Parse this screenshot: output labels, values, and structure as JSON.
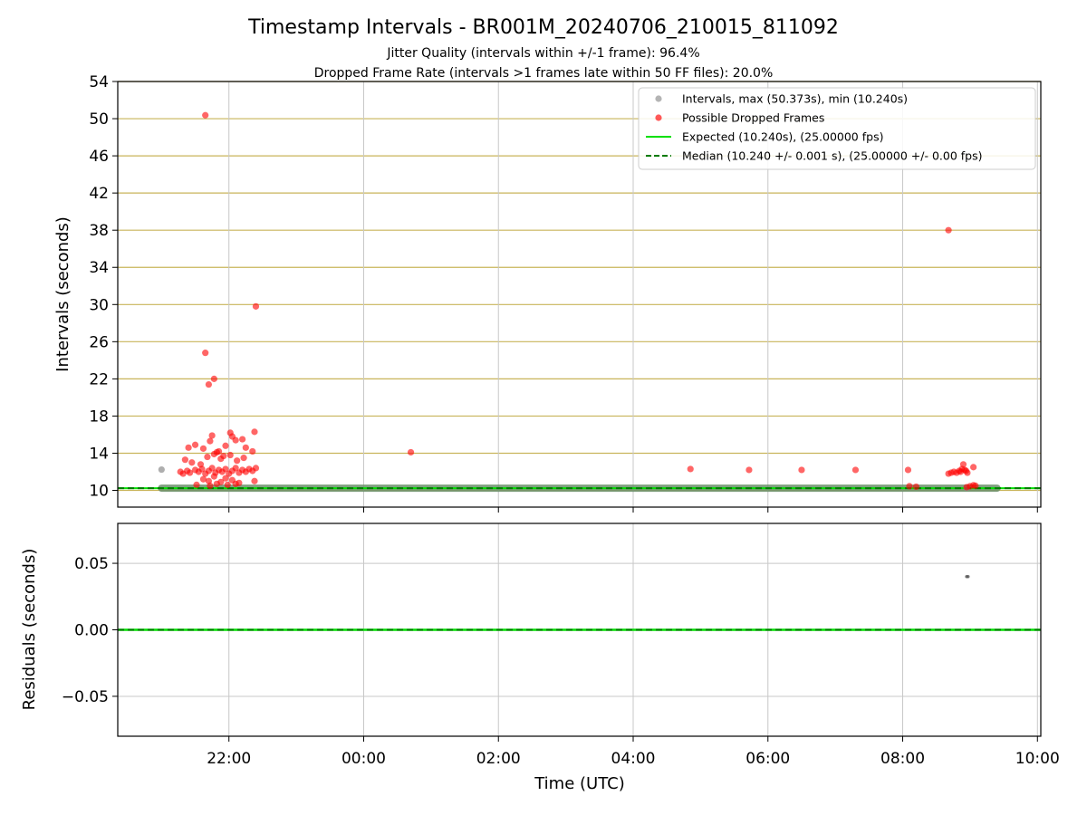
{
  "chart_data": [
    {
      "type": "scatter",
      "title": "Timestamp Intervals - BR001M_20240706_210015_811092",
      "subtitle_lines": [
        "Jitter Quality (intervals within +/-1 frame): 96.4%",
        "Dropped Frame Rate (intervals >1 frames late within 50 FF files): 20.0%"
      ],
      "xlabel": "",
      "ylabel": "Intervals (seconds)",
      "x_unit": "hours since 00:00 UTC (2024-07-06 21:00 = -3.0)",
      "xlim": [
        -3.65,
        10.05
      ],
      "ylim": [
        8.2,
        54
      ],
      "yticks": [
        10,
        14,
        18,
        22,
        26,
        30,
        34,
        38,
        42,
        46,
        50,
        54
      ],
      "xticks": [
        -2,
        0,
        2,
        4,
        6,
        8,
        10
      ],
      "xtick_labels": [
        "22:00",
        "00:00",
        "02:00",
        "04:00",
        "06:00",
        "08:00",
        "10:00"
      ],
      "grid": {
        "y_color": "#c8b45a",
        "x_color": "#c8c8c8"
      },
      "legend_position": "top-right",
      "colors": {
        "intervals": "#8c8c8c",
        "dropped": "#ff0000",
        "expected": "#00e000",
        "median": "#007a00"
      },
      "legend": [
        {
          "label": "Intervals, max (50.373s), min (10.240s)",
          "kind": "dot",
          "color": "#8c8c8c"
        },
        {
          "label": "Possible Dropped Frames",
          "kind": "dot",
          "color": "#ff0000"
        },
        {
          "label": "Expected (10.240s), (25.00000 fps)",
          "kind": "line",
          "color": "#00e000"
        },
        {
          "label": "Median (10.240 +/- 0.001 s), (25.00000 +/- 0.00 fps)",
          "kind": "dash",
          "color": "#007a00"
        }
      ],
      "expected_interval": 10.24,
      "median_interval": 10.24,
      "interval_band": {
        "x_start": -3.0,
        "x_end": 9.4,
        "y": 10.24
      },
      "series": [
        {
          "name": "Intervals",
          "points": [
            [
              -3.0,
              12.24
            ],
            [
              8.95,
              10.28
            ]
          ]
        },
        {
          "name": "Possible Dropped Frames",
          "points": [
            [
              -2.35,
              50.37
            ],
            [
              -2.35,
              24.8
            ],
            [
              -2.3,
              21.4
            ],
            [
              -2.22,
              22.0
            ],
            [
              -1.6,
              29.8
            ],
            [
              -2.6,
              14.6
            ],
            [
              -2.5,
              14.9
            ],
            [
              -2.38,
              14.5
            ],
            [
              -2.28,
              15.3
            ],
            [
              -2.25,
              15.9
            ],
            [
              -2.15,
              14.2
            ],
            [
              -2.05,
              14.8
            ],
            [
              -1.98,
              16.2
            ],
            [
              -1.95,
              15.8
            ],
            [
              -1.9,
              15.4
            ],
            [
              -1.8,
              15.5
            ],
            [
              -1.75,
              14.6
            ],
            [
              -1.65,
              14.2
            ],
            [
              -1.62,
              16.3
            ],
            [
              -2.65,
              13.3
            ],
            [
              -2.55,
              13.0
            ],
            [
              -2.42,
              12.8
            ],
            [
              -2.32,
              13.6
            ],
            [
              -2.22,
              13.9
            ],
            [
              -2.18,
              14.1
            ],
            [
              -2.12,
              13.4
            ],
            [
              -2.08,
              13.7
            ],
            [
              -1.98,
              13.8
            ],
            [
              -1.88,
              13.2
            ],
            [
              -1.78,
              13.5
            ],
            [
              -2.72,
              12.0
            ],
            [
              -2.68,
              11.8
            ],
            [
              -2.62,
              12.1
            ],
            [
              -2.58,
              11.9
            ],
            [
              -2.5,
              12.2
            ],
            [
              -2.45,
              12.0
            ],
            [
              -2.4,
              12.3
            ],
            [
              -2.35,
              11.8
            ],
            [
              -2.3,
              12.1
            ],
            [
              -2.25,
              12.4
            ],
            [
              -2.2,
              11.9
            ],
            [
              -2.15,
              12.2
            ],
            [
              -2.1,
              12.0
            ],
            [
              -2.05,
              12.3
            ],
            [
              -2.0,
              11.8
            ],
            [
              -1.95,
              12.1
            ],
            [
              -1.9,
              12.4
            ],
            [
              -1.85,
              11.9
            ],
            [
              -1.8,
              12.2
            ],
            [
              -1.75,
              12.0
            ],
            [
              -1.7,
              12.3
            ],
            [
              -1.65,
              12.1
            ],
            [
              -1.6,
              12.4
            ],
            [
              -2.38,
              11.2
            ],
            [
              -2.3,
              11.0
            ],
            [
              -2.22,
              11.5
            ],
            [
              -2.12,
              10.9
            ],
            [
              -2.05,
              11.3
            ],
            [
              -1.95,
              11.1
            ],
            [
              -1.85,
              10.8
            ],
            [
              -2.48,
              10.6
            ],
            [
              -2.28,
              10.5
            ],
            [
              -2.18,
              10.7
            ],
            [
              -2.02,
              10.6
            ],
            [
              -1.9,
              10.7
            ],
            [
              -1.62,
              11.0
            ],
            [
              0.7,
              14.1
            ],
            [
              4.85,
              12.3
            ],
            [
              5.72,
              12.2
            ],
            [
              6.5,
              12.2
            ],
            [
              7.3,
              12.2
            ],
            [
              8.08,
              12.2
            ],
            [
              8.1,
              10.45
            ],
            [
              8.2,
              10.4
            ],
            [
              8.68,
              38.0
            ],
            [
              8.68,
              11.8
            ],
            [
              8.72,
              11.9
            ],
            [
              8.76,
              12.0
            ],
            [
              8.8,
              11.9
            ],
            [
              8.84,
              12.1
            ],
            [
              8.86,
              12.0
            ],
            [
              8.88,
              12.3
            ],
            [
              8.9,
              12.8
            ],
            [
              8.92,
              12.2
            ],
            [
              8.94,
              12.1
            ],
            [
              8.96,
              11.9
            ],
            [
              9.05,
              12.5
            ],
            [
              8.95,
              10.35
            ],
            [
              9.0,
              10.45
            ],
            [
              9.05,
              10.55
            ],
            [
              9.08,
              10.5
            ]
          ]
        }
      ]
    },
    {
      "type": "scatter",
      "title": "",
      "xlabel": "Time (UTC)",
      "ylabel": "Residuals (seconds)",
      "xlim": [
        -3.65,
        10.05
      ],
      "ylim": [
        -0.08,
        0.08
      ],
      "yticks": [
        0.05,
        0.0,
        -0.05
      ],
      "ytick_labels": [
        "0.05",
        "0.00",
        "−0.05"
      ],
      "xticks": [
        -2,
        0,
        2,
        4,
        6,
        8,
        10
      ],
      "xtick_labels": [
        "22:00",
        "00:00",
        "02:00",
        "04:00",
        "06:00",
        "08:00",
        "10:00"
      ],
      "grid": {
        "color": "#c8c8c8"
      },
      "series": [
        {
          "name": "Residuals",
          "points": [
            [
              8.95,
              0.04
            ],
            [
              8.97,
              0.04
            ]
          ]
        }
      ],
      "zero_line_x_range": [
        -3.65,
        10.05
      ]
    }
  ]
}
